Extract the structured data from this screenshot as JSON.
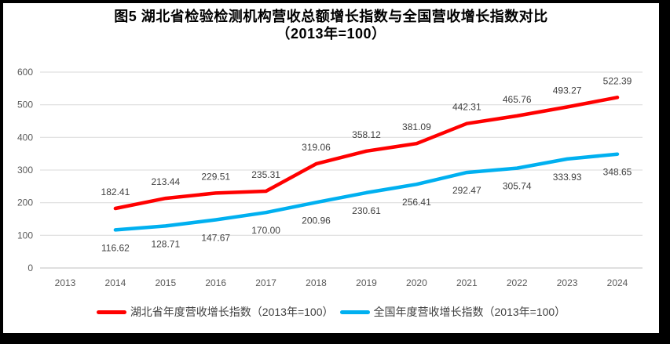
{
  "window": {
    "background": "#FFFFFF",
    "border_color": "#000000"
  },
  "chart": {
    "title_line1": "图5 湖北省检验检测机构营收总额增长指数与全国营收增长指数对比",
    "title_line2": "（2013年=100）"
  },
  "chart_data": {
    "type": "line",
    "title": "图5 湖北省检验检测机构营收总额增长指数与全国营收增长指数对比（2013年=100）",
    "categories": [
      "2013",
      "2014",
      "2015",
      "2016",
      "2017",
      "2018",
      "2019",
      "2020",
      "2021",
      "2022",
      "2023",
      "2024"
    ],
    "series": [
      {
        "name": "湖北省年度营收增长指数（2013年=100）",
        "color": "#FF0000",
        "values": [
          null,
          182.41,
          213.44,
          229.51,
          235.31,
          319.06,
          358.12,
          381.09,
          442.31,
          465.76,
          493.27,
          522.39
        ],
        "labels": [
          null,
          "182.41",
          "213.44",
          "229.51",
          "235.31",
          "319.06",
          "358.12",
          "381.09",
          "442.31",
          "465.76",
          "493.27",
          "522.39"
        ],
        "label_position": "above"
      },
      {
        "name": "全国年度营收增长指数（2013年=100）",
        "color": "#00B0F0",
        "values": [
          null,
          116.62,
          128.71,
          147.67,
          170.0,
          200.96,
          230.61,
          256.41,
          292.47,
          305.74,
          333.93,
          348.65
        ],
        "labels": [
          null,
          "116.62",
          "128.71",
          "147.67",
          "170.00",
          "200.96",
          "230.61",
          "256.41",
          "292.47",
          "305.74",
          "333.93",
          "348.65"
        ],
        "label_position": "below"
      }
    ],
    "xlabel": "",
    "ylabel": "",
    "ylim": [
      0,
      600
    ],
    "yticks": [
      0,
      100,
      200,
      300,
      400,
      500,
      600
    ],
    "grid": true,
    "legend_position": "bottom",
    "colors": {
      "gridline": "#D9D9D9",
      "axis_line": "#BFBFBF",
      "tick_label": "#595959",
      "data_label": "#404040"
    }
  }
}
